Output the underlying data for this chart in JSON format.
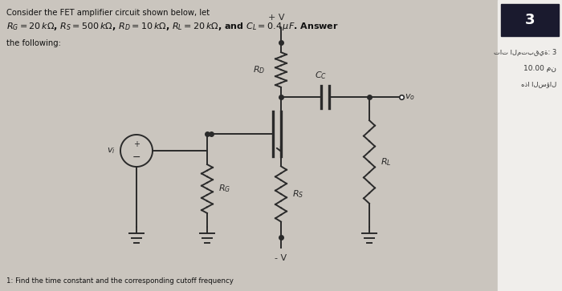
{
  "title_line1": "Consider the FET amplifier circuit shown below, let",
  "title_line2": "$R_G = 20\\,k\\Omega$, $R_S = 500\\,k\\Omega$, $R_D = 10\\,k\\Omega$, $R_L = 20\\,k\\Omega$, and $C_L = 0.4\\,\\mu F$. Answer",
  "title_line3": "the following:",
  "bottom_text": "1: Find the time constant and the corresponding cutoff frequency",
  "sidebar_number": "3",
  "sidebar_text1": "تات المتبقية: 3",
  "sidebar_text2": "10.00 من",
  "sidebar_text3": "هذا السؤال",
  "bg_color": "#cac5be",
  "sidebar_bg": "#f0eeeb",
  "sidebar_header_color": "#1a1a2e",
  "text_color": "#111111",
  "circuit_color": "#2a2a2a",
  "sidebar_arabic_color": "#333333"
}
